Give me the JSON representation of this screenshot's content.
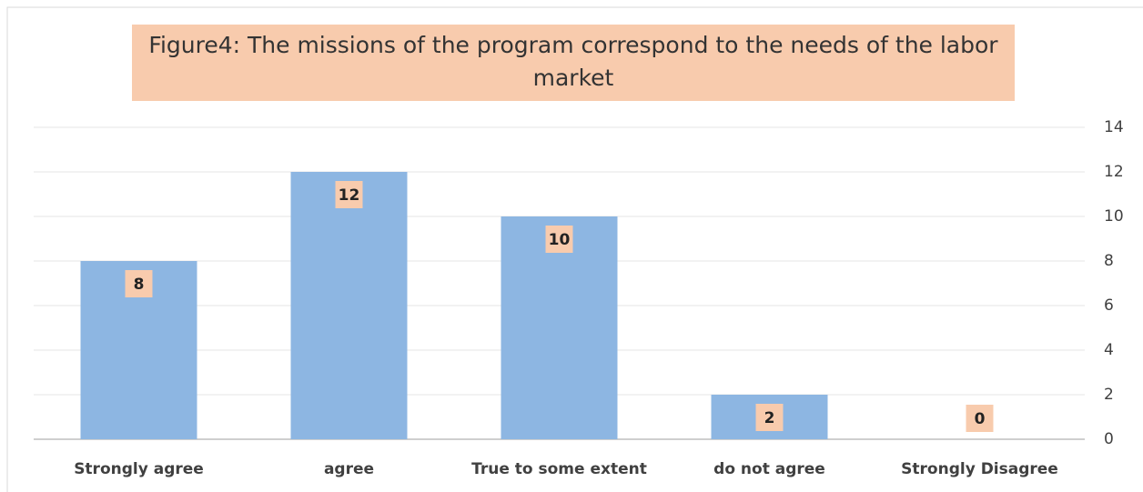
{
  "chart_data": {
    "type": "bar",
    "title": "Figure4: The missions of the program correspond to the needs of the labor market",
    "categories": [
      "Strongly agree",
      "agree",
      "True to some extent",
      "do not agree",
      "Strongly Disagree"
    ],
    "values": [
      8,
      12,
      10,
      2,
      0
    ],
    "color": "#8db6e2",
    "label_color": "#f8cbad",
    "ylim": [
      0,
      14
    ],
    "yticks": [
      0,
      2,
      4,
      6,
      8,
      10,
      12,
      14
    ],
    "grid": true,
    "y_axis_side": "right"
  }
}
